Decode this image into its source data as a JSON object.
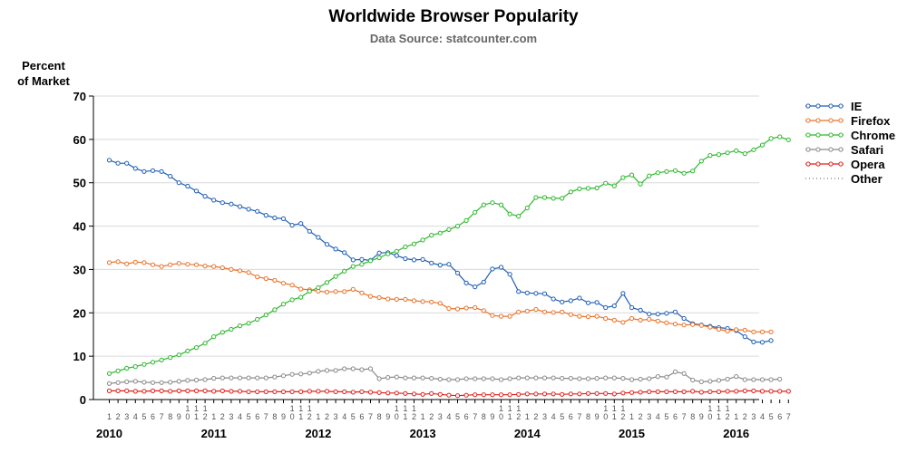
{
  "chart_data": {
    "type": "line",
    "title": "Worldwide Browser Popularity",
    "subtitle": "Data Source: statcounter.com",
    "ylabel": [
      "Percent",
      "of Market"
    ],
    "ylim": [
      0,
      70
    ],
    "yticks": [
      0,
      10,
      20,
      30,
      40,
      50,
      60,
      70
    ],
    "grid": "horizontal",
    "legend_position": "right",
    "start": {
      "year": 2010,
      "month": 1
    },
    "x_month_labels": [
      "1",
      "2",
      "3",
      "4",
      "5",
      "6",
      "7",
      "8",
      "9",
      "10",
      "11",
      "12"
    ],
    "x_year_labels": [
      "2010",
      "2011",
      "2012",
      "2013",
      "2014",
      "2015",
      "2016"
    ],
    "series": [
      {
        "name": "IE",
        "color": "#1f5fb4",
        "values": [
          55.2,
          54.5,
          54.5,
          53.3,
          52.6,
          52.8,
          52.6,
          51.5,
          50.0,
          49.2,
          48.1,
          46.9,
          46.0,
          45.4,
          45.1,
          44.5,
          43.9,
          43.4,
          42.5,
          41.9,
          41.7,
          40.2,
          40.6,
          38.8,
          37.4,
          35.8,
          34.7,
          33.9,
          32.2,
          32.3,
          32.1,
          33.8,
          33.9,
          33.2,
          32.5,
          32.2,
          32.3,
          31.5,
          31.0,
          31.2,
          29.2,
          26.9,
          26.0,
          27.1,
          30.1,
          30.5,
          28.9,
          24.9,
          24.6,
          24.5,
          24.4,
          23.2,
          22.5,
          22.8,
          23.4,
          22.3,
          22.4,
          21.2,
          21.6,
          24.5,
          21.2,
          20.6,
          19.7,
          19.7,
          19.9,
          20.2,
          18.7,
          17.5,
          17.2,
          16.9,
          16.6,
          16.4,
          15.9,
          14.5,
          13.3,
          13.2,
          13.6
        ]
      },
      {
        "name": "Firefox",
        "color": "#e8732a",
        "values": [
          31.6,
          31.8,
          31.3,
          31.7,
          31.6,
          31.1,
          30.7,
          31.1,
          31.4,
          31.2,
          31.1,
          30.8,
          30.7,
          30.4,
          30.0,
          29.7,
          29.3,
          28.3,
          27.9,
          27.5,
          26.8,
          26.4,
          25.5,
          25.3,
          25.0,
          24.8,
          24.9,
          24.9,
          25.4,
          24.6,
          23.8,
          23.5,
          23.2,
          23.1,
          23.1,
          22.8,
          22.6,
          22.5,
          22.2,
          21.0,
          20.9,
          21.1,
          21.2,
          20.5,
          19.4,
          19.2,
          19.2,
          20.2,
          20.4,
          20.8,
          20.2,
          20.1,
          20.2,
          19.6,
          19.2,
          19.1,
          19.2,
          18.7,
          18.3,
          17.8,
          18.7,
          18.3,
          18.5,
          18.1,
          17.7,
          17.4,
          17.2,
          17.3,
          17.1,
          16.7,
          16.2,
          15.8,
          16.1,
          16.0,
          15.6,
          15.6,
          15.6
        ]
      },
      {
        "name": "Chrome",
        "color": "#2db82d",
        "values": [
          6.0,
          6.6,
          7.2,
          7.6,
          8.1,
          8.6,
          9.1,
          9.7,
          10.3,
          11.2,
          12.0,
          13.0,
          14.5,
          15.5,
          16.2,
          17.0,
          17.6,
          18.5,
          19.5,
          20.7,
          22.0,
          23.0,
          23.6,
          25.0,
          25.8,
          27.0,
          28.4,
          29.6,
          30.7,
          31.2,
          32.0,
          32.7,
          33.6,
          34.2,
          35.2,
          35.9,
          36.8,
          37.9,
          38.4,
          39.2,
          40.0,
          41.3,
          43.2,
          44.9,
          45.4,
          44.9,
          42.8,
          42.3,
          44.2,
          46.6,
          46.6,
          46.4,
          46.4,
          47.9,
          48.6,
          48.7,
          48.8,
          49.9,
          49.3,
          51.2,
          51.8,
          49.7,
          51.6,
          52.3,
          52.6,
          52.8,
          52.2,
          52.7,
          55.0,
          56.3,
          56.5,
          56.9,
          57.4,
          56.7,
          57.6,
          58.7,
          60.2,
          60.6,
          59.9
        ]
      },
      {
        "name": "Safari",
        "color": "#8a8a8a",
        "values": [
          3.7,
          3.9,
          4.1,
          4.2,
          4.0,
          3.9,
          3.9,
          4.0,
          4.2,
          4.4,
          4.5,
          4.6,
          4.9,
          5.0,
          5.0,
          5.0,
          5.0,
          5.0,
          5.0,
          5.2,
          5.5,
          5.8,
          5.9,
          6.1,
          6.5,
          6.7,
          6.7,
          7.1,
          7.1,
          6.9,
          7.1,
          4.8,
          5.1,
          5.2,
          5.0,
          5.0,
          5.0,
          4.9,
          4.7,
          4.6,
          4.6,
          4.8,
          4.8,
          4.8,
          4.8,
          4.6,
          4.8,
          5.0,
          5.0,
          5.0,
          5.0,
          5.0,
          4.9,
          4.9,
          4.8,
          4.8,
          4.9,
          5.0,
          5.0,
          4.9,
          4.6,
          4.7,
          4.8,
          5.3,
          5.2,
          6.4,
          6.0,
          4.5,
          4.1,
          4.2,
          4.4,
          4.7,
          5.3,
          4.6,
          4.6,
          4.6,
          4.6,
          4.7
        ]
      },
      {
        "name": "Opera",
        "color": "#e0201b",
        "values": [
          2.0,
          2.0,
          2.0,
          1.9,
          1.9,
          2.0,
          2.0,
          1.9,
          2.0,
          2.0,
          2.0,
          2.0,
          1.9,
          2.0,
          1.9,
          1.9,
          1.8,
          1.8,
          1.8,
          1.8,
          1.8,
          1.8,
          1.8,
          1.9,
          1.9,
          1.9,
          1.8,
          1.8,
          1.7,
          1.8,
          1.7,
          1.6,
          1.5,
          1.5,
          1.4,
          1.3,
          1.2,
          1.4,
          1.2,
          1.0,
          0.9,
          1.0,
          1.1,
          1.1,
          1.1,
          1.1,
          1.1,
          1.2,
          1.3,
          1.3,
          1.3,
          1.3,
          1.2,
          1.3,
          1.3,
          1.4,
          1.4,
          1.4,
          1.3,
          1.5,
          1.6,
          1.7,
          1.8,
          1.8,
          1.8,
          1.8,
          1.8,
          1.9,
          1.7,
          1.8,
          1.8,
          1.9,
          1.9,
          2.0,
          2.0,
          1.9,
          1.9,
          1.9,
          1.9
        ]
      },
      {
        "name": "Other",
        "color": "#000000",
        "values": []
      }
    ]
  }
}
